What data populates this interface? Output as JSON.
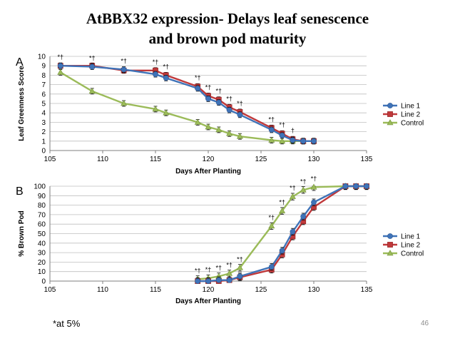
{
  "slide": {
    "title_line1": "AtBBX32 expression- Delays leaf senescence",
    "title_line2": "and brown pod maturity",
    "footnote": "*at 5%",
    "page_number": "46"
  },
  "colors": {
    "line1": "#3f73b8",
    "line2": "#c0393b",
    "control": "#9bbb59"
  },
  "chart_data": [
    {
      "type": "line",
      "panel_letter": "A",
      "xlabel": "Days After Planting",
      "ylabel": "Leaf Greenness Score",
      "xlim": [
        105,
        135
      ],
      "xticks": [
        105,
        110,
        115,
        120,
        125,
        130,
        135
      ],
      "ylim": [
        0,
        10
      ],
      "yticks": [
        0,
        1,
        2,
        3,
        4,
        5,
        6,
        7,
        8,
        9,
        10
      ],
      "legend": "right",
      "series": [
        {
          "name": "Line 1",
          "x": [
            106,
            109,
            112,
            115,
            116,
            119,
            120,
            121,
            122,
            123,
            126,
            127,
            128,
            129,
            130
          ],
          "values": [
            9.0,
            8.9,
            8.6,
            8.1,
            7.7,
            6.6,
            5.5,
            5.1,
            4.3,
            3.8,
            2.2,
            1.6,
            1.1,
            1.0,
            1.0
          ]
        },
        {
          "name": "Line 2",
          "x": [
            106,
            109,
            112,
            115,
            116,
            119,
            120,
            121,
            122,
            123,
            126,
            127,
            128,
            129,
            130
          ],
          "values": [
            9.0,
            9.0,
            8.5,
            8.5,
            8.0,
            6.8,
            5.8,
            5.4,
            4.6,
            4.1,
            2.4,
            1.8,
            1.2,
            1.0,
            1.0
          ]
        },
        {
          "name": "Control",
          "x": [
            106,
            109,
            112,
            115,
            116,
            119,
            120,
            121,
            122,
            123,
            126,
            127,
            128,
            129,
            130
          ],
          "values": [
            8.3,
            6.3,
            5.0,
            4.4,
            4.0,
            3.0,
            2.5,
            2.2,
            1.8,
            1.5,
            1.1,
            1.0,
            1.0,
            1.0,
            1.0
          ]
        }
      ],
      "annotations": [
        {
          "x": 106,
          "y": 9.0,
          "text": "*†"
        },
        {
          "x": 109,
          "y": 8.9,
          "text": "*†"
        },
        {
          "x": 112,
          "y": 8.6,
          "text": "*†"
        },
        {
          "x": 115,
          "y": 8.5,
          "text": "*†"
        },
        {
          "x": 116,
          "y": 8.0,
          "text": "*†"
        },
        {
          "x": 119,
          "y": 6.8,
          "text": "*†"
        },
        {
          "x": 120,
          "y": 5.8,
          "text": "*†"
        },
        {
          "x": 121,
          "y": 5.4,
          "text": "*†"
        },
        {
          "x": 122,
          "y": 4.6,
          "text": "*†"
        },
        {
          "x": 123,
          "y": 4.1,
          "text": "*†"
        },
        {
          "x": 126,
          "y": 2.4,
          "text": "*†"
        },
        {
          "x": 127,
          "y": 1.8,
          "text": "*†"
        },
        {
          "x": 128,
          "y": 1.2,
          "text": "†"
        }
      ]
    },
    {
      "type": "line",
      "panel_letter": "B",
      "xlabel": "Days After Planting",
      "ylabel": "% Brown Pod",
      "xlim": [
        105,
        135
      ],
      "xticks": [
        105,
        110,
        115,
        120,
        125,
        130,
        135
      ],
      "ylim": [
        0,
        100
      ],
      "yticks": [
        0,
        10,
        20,
        30,
        40,
        50,
        60,
        70,
        80,
        90,
        100
      ],
      "legend": "right",
      "series": [
        {
          "name": "Line 1",
          "x": [
            119,
            120,
            121,
            122,
            123,
            126,
            127,
            128,
            129,
            130,
            133,
            134,
            135
          ],
          "values": [
            0,
            0,
            1,
            1,
            5,
            15,
            32,
            52,
            68,
            83,
            100,
            100,
            100
          ]
        },
        {
          "name": "Line 2",
          "x": [
            119,
            120,
            121,
            122,
            123,
            126,
            127,
            128,
            129,
            130,
            133,
            134,
            135
          ],
          "values": [
            0,
            0,
            0,
            1,
            4,
            12,
            28,
            47,
            63,
            78,
            100,
            100,
            100
          ]
        },
        {
          "name": "Control",
          "x": [
            119,
            120,
            121,
            122,
            123,
            126,
            127,
            128,
            129,
            130,
            133,
            134,
            135
          ],
          "values": [
            2,
            3,
            5,
            8,
            14,
            58,
            74,
            89,
            96,
            99,
            100,
            100,
            100
          ]
        }
      ],
      "annotations": [
        {
          "x": 119,
          "y": 2,
          "text": "*†"
        },
        {
          "x": 120,
          "y": 3,
          "text": "*†"
        },
        {
          "x": 121,
          "y": 5,
          "text": "*†"
        },
        {
          "x": 122,
          "y": 8,
          "text": "*†"
        },
        {
          "x": 123,
          "y": 14,
          "text": "*†"
        },
        {
          "x": 126,
          "y": 58,
          "text": "*†"
        },
        {
          "x": 127,
          "y": 74,
          "text": "*†"
        },
        {
          "x": 128,
          "y": 89,
          "text": "*†"
        },
        {
          "x": 129,
          "y": 96,
          "text": "*†"
        },
        {
          "x": 130,
          "y": 99,
          "text": "*†"
        }
      ]
    }
  ]
}
